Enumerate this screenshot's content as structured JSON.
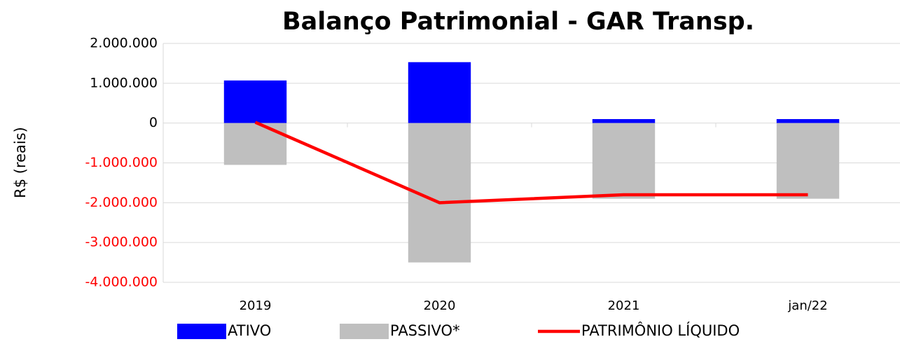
{
  "chart_data": {
    "type": "bar_line",
    "title": "Balanço Patrimonial - GAR Transp.",
    "y_label": "R$ (reais)",
    "categories": [
      "2019",
      "2020",
      "2021",
      "jan/22"
    ],
    "series": [
      {
        "name": "ATIVO",
        "type": "bar",
        "color": "#0000ff",
        "values": [
          1070000,
          1530000,
          100000,
          100000
        ]
      },
      {
        "name": "PASSIVO*",
        "type": "bar",
        "color": "#bfbfbf",
        "values": [
          -1050000,
          -3500000,
          -1900000,
          -1900000
        ]
      },
      {
        "name": "PATRIMÔNIO LÍQUIDO",
        "type": "line",
        "color": "#ff0000",
        "values": [
          20000,
          -2000000,
          -1800000,
          -1800000
        ]
      }
    ],
    "ylim": [
      -4000000,
      2000000
    ],
    "yticks": [
      {
        "value": 2000000,
        "label": "2.000.000"
      },
      {
        "value": 1000000,
        "label": "1.000.000"
      },
      0,
      {
        "value": -1000000,
        "label": "-1.000.000"
      },
      {
        "value": -2000000,
        "label": "-2.000.000"
      },
      {
        "value": -3000000,
        "label": "-3.000.000"
      },
      {
        "value": -4000000,
        "label": "-4.000.000"
      }
    ],
    "negative_tick_color": "#ff0000",
    "grid": true,
    "legend": "bottom"
  }
}
